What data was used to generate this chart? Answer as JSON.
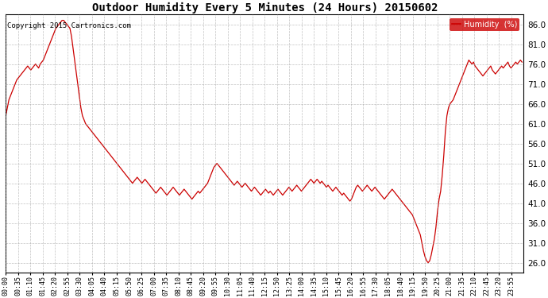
{
  "title": "Outdoor Humidity Every 5 Minutes (24 Hours) 20150602",
  "copyright": "Copyright 2015 Cartronics.com",
  "legend_label": "Humidity  (%)",
  "line_color": "#cc0000",
  "bg_color": "#ffffff",
  "grid_color": "#999999",
  "legend_bg": "#cc0000",
  "legend_text_color": "#ffffff",
  "yticks": [
    26.0,
    31.0,
    36.0,
    41.0,
    46.0,
    51.0,
    56.0,
    61.0,
    66.0,
    71.0,
    76.0,
    81.0,
    86.0
  ],
  "ylim": [
    23.5,
    88.5
  ],
  "xtick_labels": [
    "00:00",
    "00:35",
    "01:10",
    "01:45",
    "02:20",
    "02:55",
    "03:30",
    "04:05",
    "04:40",
    "05:15",
    "05:50",
    "06:25",
    "07:00",
    "07:35",
    "08:10",
    "08:45",
    "09:20",
    "09:55",
    "10:30",
    "11:05",
    "11:40",
    "12:15",
    "12:50",
    "13:25",
    "14:00",
    "14:35",
    "15:10",
    "15:45",
    "16:20",
    "16:55",
    "17:30",
    "18:05",
    "18:40",
    "19:15",
    "19:50",
    "20:25",
    "21:00",
    "21:35",
    "22:10",
    "22:45",
    "23:20",
    "23:55"
  ],
  "humidity_values": [
    63.0,
    65.0,
    67.0,
    68.0,
    69.0,
    70.0,
    71.0,
    72.0,
    72.5,
    73.0,
    73.5,
    74.0,
    74.5,
    75.0,
    75.5,
    75.0,
    74.5,
    75.0,
    75.5,
    76.0,
    75.5,
    75.0,
    76.0,
    76.5,
    77.0,
    78.0,
    79.0,
    80.0,
    81.0,
    82.0,
    83.0,
    84.0,
    85.0,
    85.5,
    86.0,
    86.5,
    87.0,
    87.0,
    86.5,
    86.0,
    85.5,
    85.0,
    83.0,
    80.0,
    77.0,
    74.0,
    71.0,
    68.0,
    65.0,
    63.0,
    62.0,
    61.0,
    60.5,
    60.0,
    59.5,
    59.0,
    58.5,
    58.0,
    57.5,
    57.0,
    56.5,
    56.0,
    55.5,
    55.0,
    54.5,
    54.0,
    53.5,
    53.0,
    52.5,
    52.0,
    51.5,
    51.0,
    50.5,
    50.0,
    49.5,
    49.0,
    48.5,
    48.0,
    47.5,
    47.0,
    46.5,
    46.0,
    46.5,
    47.0,
    47.5,
    47.0,
    46.5,
    46.0,
    46.5,
    47.0,
    46.5,
    46.0,
    45.5,
    45.0,
    44.5,
    44.0,
    43.5,
    44.0,
    44.5,
    45.0,
    44.5,
    44.0,
    43.5,
    43.0,
    43.5,
    44.0,
    44.5,
    45.0,
    44.5,
    44.0,
    43.5,
    43.0,
    43.5,
    44.0,
    44.5,
    44.0,
    43.5,
    43.0,
    42.5,
    42.0,
    42.5,
    43.0,
    43.5,
    44.0,
    43.5,
    44.0,
    44.5,
    45.0,
    45.5,
    46.0,
    47.0,
    48.0,
    49.0,
    50.0,
    50.5,
    51.0,
    50.5,
    50.0,
    49.5,
    49.0,
    48.5,
    48.0,
    47.5,
    47.0,
    46.5,
    46.0,
    45.5,
    46.0,
    46.5,
    46.0,
    45.5,
    45.0,
    45.5,
    46.0,
    45.5,
    45.0,
    44.5,
    44.0,
    44.5,
    45.0,
    44.5,
    44.0,
    43.5,
    43.0,
    43.5,
    44.0,
    44.5,
    44.0,
    43.5,
    44.0,
    43.5,
    43.0,
    43.5,
    44.0,
    44.5,
    44.0,
    43.5,
    43.0,
    43.5,
    44.0,
    44.5,
    45.0,
    44.5,
    44.0,
    44.5,
    45.0,
    45.5,
    45.0,
    44.5,
    44.0,
    44.5,
    45.0,
    45.5,
    46.0,
    46.5,
    47.0,
    46.5,
    46.0,
    46.5,
    47.0,
    46.5,
    46.0,
    46.5,
    46.0,
    45.5,
    45.0,
    45.5,
    45.0,
    44.5,
    44.0,
    44.5,
    45.0,
    44.5,
    44.0,
    43.5,
    43.0,
    43.5,
    43.0,
    42.5,
    42.0,
    41.5,
    42.0,
    43.0,
    44.0,
    45.0,
    45.5,
    45.0,
    44.5,
    44.0,
    44.5,
    45.0,
    45.5,
    45.0,
    44.5,
    44.0,
    44.5,
    45.0,
    44.5,
    44.0,
    43.5,
    43.0,
    42.5,
    42.0,
    42.5,
    43.0,
    43.5,
    44.0,
    44.5,
    44.0,
    43.5,
    43.0,
    42.5,
    42.0,
    41.5,
    41.0,
    40.5,
    40.0,
    39.5,
    39.0,
    38.5,
    38.0,
    37.0,
    36.0,
    35.0,
    34.0,
    33.0,
    31.0,
    29.0,
    27.5,
    26.5,
    26.0,
    26.5,
    28.0,
    30.0,
    32.0,
    35.0,
    39.0,
    42.0,
    44.0,
    48.0,
    53.0,
    59.0,
    63.0,
    65.0,
    66.0,
    66.5,
    67.0,
    68.0,
    69.0,
    70.0,
    71.0,
    72.0,
    73.0,
    74.0,
    75.0,
    76.0,
    77.0,
    76.5,
    76.0,
    76.5,
    75.5,
    75.0,
    74.5,
    74.0,
    73.5,
    73.0,
    73.5,
    74.0,
    74.5,
    75.0,
    75.5,
    74.5,
    74.0,
    73.5,
    74.0,
    74.5,
    75.0,
    75.5,
    75.0,
    75.5,
    76.0,
    76.5,
    75.5,
    75.0,
    75.5,
    76.0,
    76.5,
    76.0,
    76.5,
    77.0,
    76.5
  ]
}
